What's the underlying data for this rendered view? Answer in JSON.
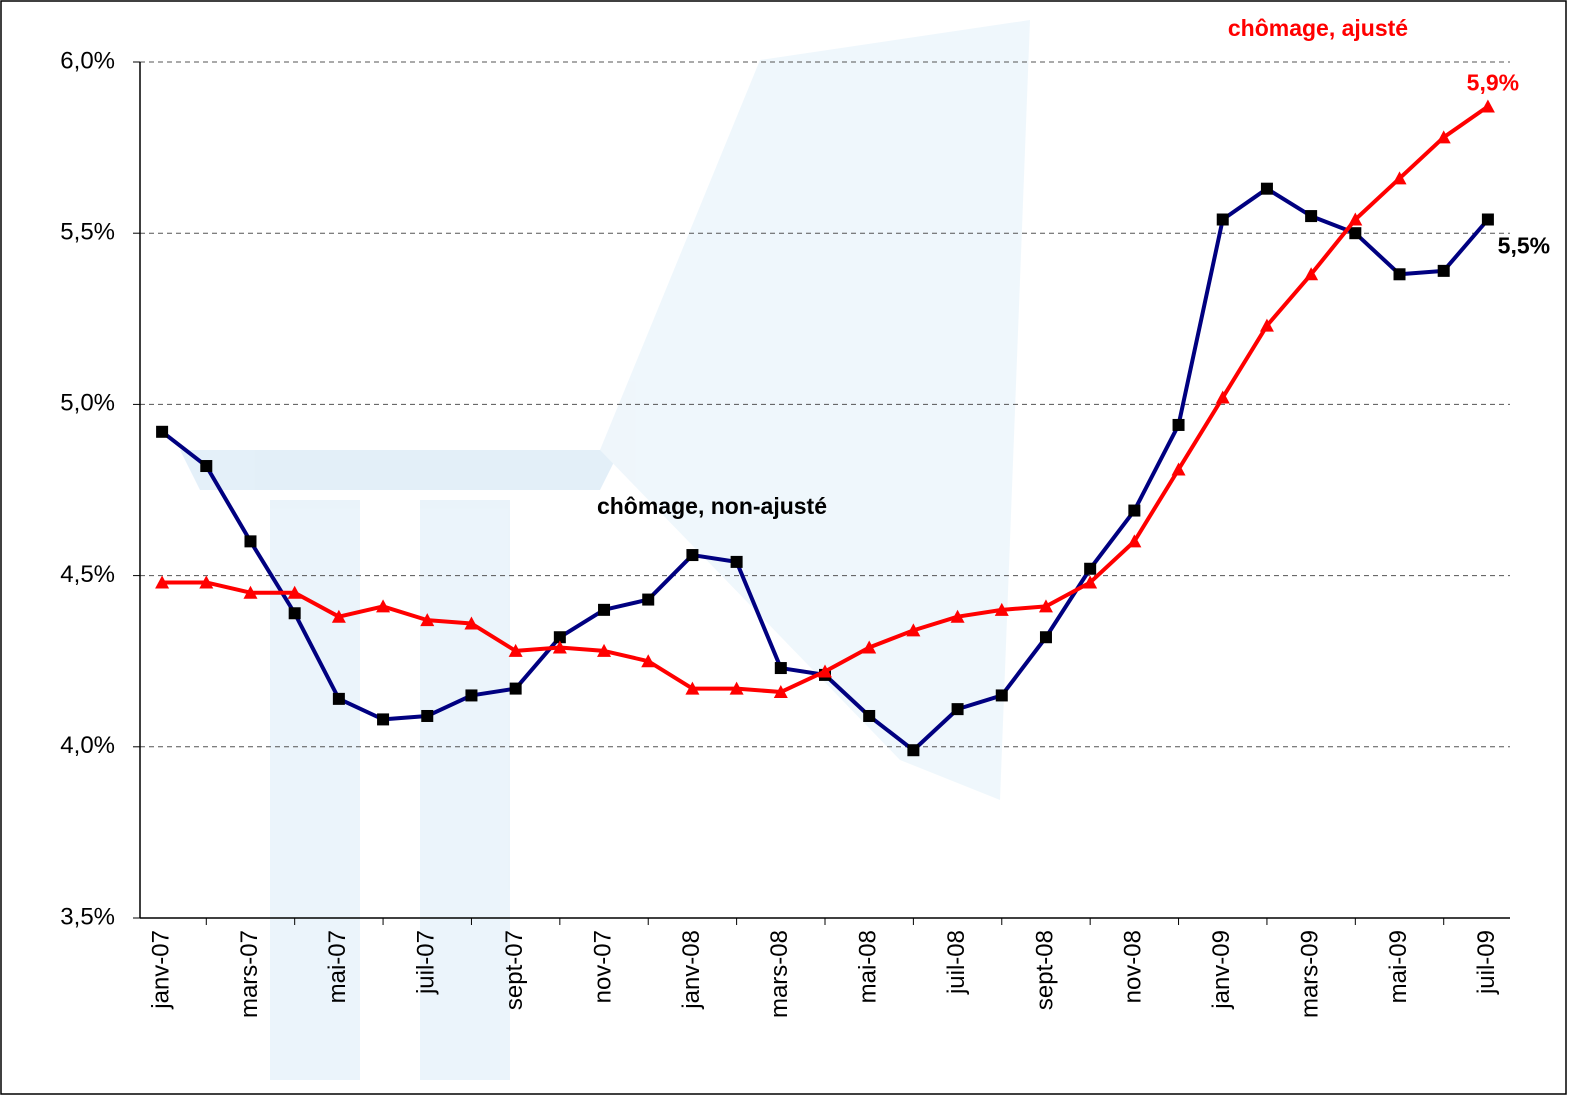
{
  "chart_data": {
    "type": "line",
    "categories": [
      "janv-07",
      null,
      "mars-07",
      null,
      "mai-07",
      null,
      "juil-07",
      null,
      "sept-07",
      null,
      "nov-07",
      null,
      "janv-08",
      null,
      "mars-08",
      null,
      "mai-08",
      null,
      "juil-08",
      null,
      "sept-08",
      null,
      "nov-08",
      null,
      "janv-09",
      null,
      "mars-09",
      null,
      "mai-09",
      null,
      "juil-09"
    ],
    "series": [
      {
        "name": "chômage, non-ajusté",
        "color": "#000080",
        "marker": "square",
        "marker_color": "#000000",
        "values": [
          4.92,
          4.82,
          4.6,
          4.39,
          4.14,
          4.08,
          4.09,
          4.15,
          4.17,
          4.32,
          4.4,
          4.43,
          4.56,
          4.54,
          4.23,
          4.21,
          4.09,
          3.99,
          4.11,
          4.15,
          4.32,
          4.52,
          4.69,
          4.94,
          5.54,
          5.63,
          5.55,
          5.5,
          5.38,
          5.39,
          5.54
        ],
        "value_labels": [
          null,
          null,
          null,
          null,
          null,
          null,
          null,
          null,
          null,
          null,
          null,
          null,
          null,
          null,
          null,
          null,
          null,
          null,
          null,
          null,
          null,
          null,
          null,
          null,
          null,
          null,
          null,
          null,
          null,
          null,
          "5,5%"
        ],
        "label_color": "#000000"
      },
      {
        "name": "chômage, ajusté",
        "color": "#ff0000",
        "marker": "triangle",
        "marker_color": "#ff0000",
        "values": [
          4.48,
          4.48,
          4.45,
          4.45,
          4.38,
          4.41,
          4.37,
          4.36,
          4.28,
          4.29,
          4.28,
          4.25,
          4.17,
          4.17,
          4.16,
          4.22,
          4.29,
          4.34,
          4.38,
          4.4,
          4.41,
          4.48,
          4.6,
          4.81,
          5.02,
          5.23,
          5.38,
          5.54,
          5.66,
          5.78,
          5.87
        ],
        "value_labels": [
          null,
          null,
          null,
          null,
          null,
          null,
          null,
          null,
          null,
          null,
          null,
          null,
          null,
          null,
          null,
          null,
          null,
          null,
          null,
          null,
          null,
          null,
          null,
          null,
          null,
          null,
          null,
          null,
          null,
          null,
          "5,9%"
        ],
        "label_color": "#ff0000"
      }
    ],
    "ylim": [
      3.5,
      6.0
    ],
    "yticks": [
      {
        "value": 3.5,
        "label": "3,5%"
      },
      {
        "value": 4.0,
        "label": "4,0%"
      },
      {
        "value": 4.5,
        "label": "4,5%"
      },
      {
        "value": 5.0,
        "label": "5,0%"
      },
      {
        "value": 5.5,
        "label": "5,5%"
      },
      {
        "value": 6.0,
        "label": "6,0%"
      }
    ],
    "grid": true
  }
}
